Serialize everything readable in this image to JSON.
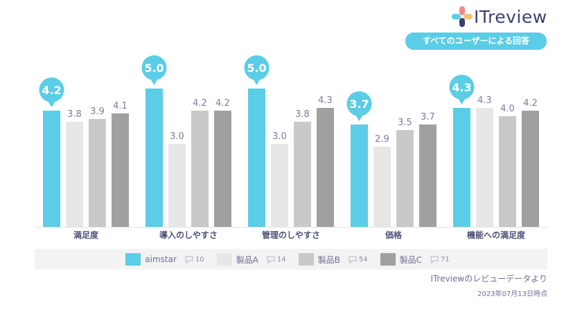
{
  "logo": {
    "text": "ITreview",
    "dot_colors": [
      "#ef8a8a",
      "#f2c46b",
      "#5bcde6",
      "#3b3f6e"
    ]
  },
  "scope_label": "すべてのユーザーによる回答",
  "chart_data": {
    "type": "bar",
    "categories": [
      "満足度",
      "導入のしやすさ",
      "管理のしやすさ",
      "価格",
      "機能への満足度"
    ],
    "series": [
      {
        "name": "aimstar",
        "color": "#5bcde6",
        "values": [
          4.2,
          5.0,
          5.0,
          3.7,
          4.3
        ]
      },
      {
        "name": "製品A",
        "color": "#e7e7e7",
        "values": [
          3.8,
          3.0,
          3.0,
          2.9,
          4.3
        ]
      },
      {
        "name": "製品B",
        "color": "#c9c9c9",
        "values": [
          3.9,
          4.2,
          3.8,
          3.5,
          4.0
        ]
      },
      {
        "name": "製品C",
        "color": "#a0a0a0",
        "values": [
          4.1,
          4.2,
          4.3,
          3.7,
          4.2
        ]
      }
    ],
    "ylim": [
      0,
      5
    ],
    "grid": false,
    "legend_position": "bottom"
  },
  "legend": [
    {
      "label": "aimstar",
      "count": "10",
      "color": "#5bcde6"
    },
    {
      "label": "製品A",
      "count": "14",
      "color": "#e7e7e7"
    },
    {
      "label": "製品B",
      "count": "54",
      "color": "#c9c9c9"
    },
    {
      "label": "製品C",
      "count": "71",
      "color": "#a0a0a0"
    }
  ],
  "source_note": "ITreviewのレビューデータより",
  "date_note": "2023年07月13日時点"
}
